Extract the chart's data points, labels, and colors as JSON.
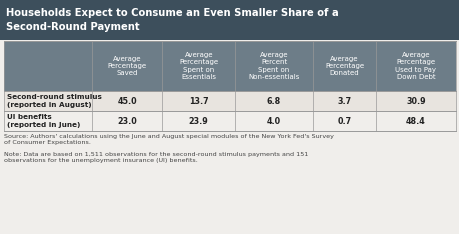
{
  "title": "Households Expect to Consume an Even Smaller Share of a\nSecond-Round Payment",
  "col_headers": [
    "Average\nPercentage\nSaved",
    "Average\nPercentage\nSpent on\nEssentials",
    "Average\nPercent\nSpent on\nNon-essentials",
    "Average\nPercentage\nDonated",
    "Average\nPercentage\nUsed to Pay\nDown Debt"
  ],
  "row_labels": [
    "Second-round stimulus\n(reported in August)",
    "UI benefits\n(reported in June)"
  ],
  "data": [
    [
      "45.0",
      "13.7",
      "6.8",
      "3.7",
      "30.9"
    ],
    [
      "23.0",
      "23.9",
      "4.0",
      "0.7",
      "48.4"
    ]
  ],
  "source_text": "Source: Authors' calculations using the June and August special modules of the New York Fed's Survey\nof Consumer Expectations.",
  "note_text": "Note: Data are based on 1,511 observations for the second-round stimulus payments and 151\nobservations for the unemployment insurance (UI) benefits.",
  "title_bg": "#3d4f5c",
  "title_color": "#ffffff",
  "header_bg": "#6d7d88",
  "row0_bg": "#e8e4df",
  "row1_bg": "#f0eeeb",
  "body_bg": "#f0eeeb",
  "border_color": "#999999",
  "text_color": "#222222",
  "source_color": "#444444"
}
